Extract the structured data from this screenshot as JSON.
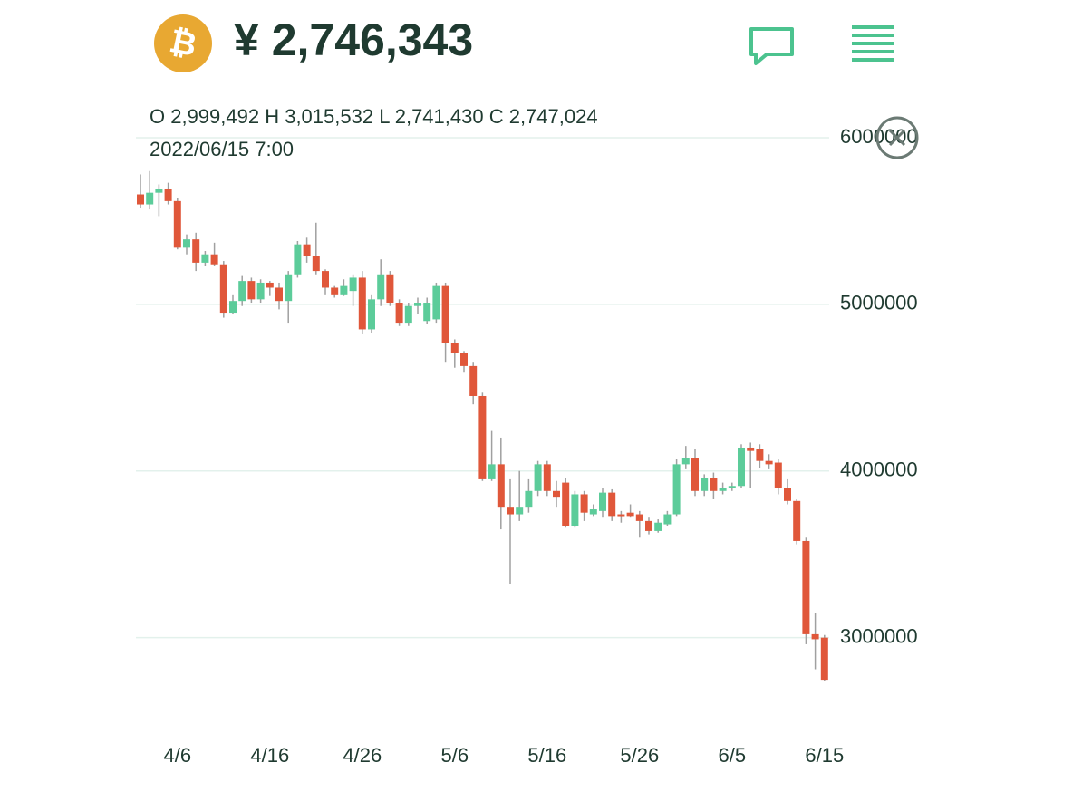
{
  "header": {
    "price": "¥ 2,746,343",
    "ohlc": "O 2,999,492  H 3,015,532  L 2,741,430  C 2,747,024",
    "datetime": "2022/06/15 7:00"
  },
  "chart_data": {
    "type": "candlestick",
    "up_color": "#5ccc9a",
    "down_color": "#e0573a",
    "wick_color": "#a0a0a0",
    "grid": true,
    "categories": [
      null,
      null,
      null,
      null,
      "4/6",
      null,
      null,
      null,
      null,
      null,
      null,
      null,
      null,
      null,
      "4/16",
      null,
      null,
      null,
      null,
      null,
      null,
      null,
      null,
      null,
      "4/26",
      null,
      null,
      null,
      null,
      null,
      null,
      null,
      null,
      null,
      "5/6",
      null,
      null,
      null,
      null,
      null,
      null,
      null,
      null,
      null,
      "5/16",
      null,
      null,
      null,
      null,
      null,
      null,
      null,
      null,
      null,
      "5/26",
      null,
      null,
      null,
      null,
      null,
      null,
      null,
      null,
      null,
      "6/5",
      null,
      null,
      null,
      null,
      null,
      null,
      null,
      null,
      null,
      "6/15"
    ],
    "open": [
      5660000,
      5600000,
      5670000,
      5690000,
      5620000,
      5340000,
      5390000,
      5250000,
      5300000,
      5240000,
      4950000,
      5020000,
      5140000,
      5030000,
      5130000,
      5100000,
      5020000,
      5180000,
      5360000,
      5290000,
      5200000,
      5100000,
      5060000,
      5080000,
      5160000,
      4850000,
      5030000,
      5180000,
      5010000,
      4890000,
      4990000,
      4900000,
      4910000,
      5110000,
      4770000,
      4710000,
      4630000,
      4450000,
      3950000,
      4040000,
      3780000,
      3740000,
      3780000,
      3880000,
      4040000,
      3880000,
      3930000,
      3670000,
      3860000,
      3740000,
      3760000,
      3870000,
      3740000,
      3750000,
      3740000,
      3700000,
      3640000,
      3680000,
      3740000,
      4040000,
      4080000,
      3880000,
      3960000,
      3880000,
      3900000,
      3910000,
      4140000,
      4130000,
      4060000,
      4050000,
      3900000,
      3820000,
      3580000,
      3020000,
      2999492
    ],
    "high": [
      5780000,
      5800000,
      5720000,
      5730000,
      5640000,
      5420000,
      5430000,
      5320000,
      5370000,
      5260000,
      5060000,
      5170000,
      5160000,
      5150000,
      5140000,
      5130000,
      5200000,
      5380000,
      5400000,
      5490000,
      5210000,
      5110000,
      5150000,
      5180000,
      5200000,
      5060000,
      5270000,
      5200000,
      5030000,
      5010000,
      5040000,
      5040000,
      5130000,
      5130000,
      4790000,
      4720000,
      4650000,
      4470000,
      4240000,
      4200000,
      3950000,
      4000000,
      3950000,
      4060000,
      4060000,
      3940000,
      3960000,
      3880000,
      3880000,
      3800000,
      3900000,
      3890000,
      3760000,
      3800000,
      3760000,
      3720000,
      3710000,
      3760000,
      4070000,
      4150000,
      4130000,
      3980000,
      3990000,
      3930000,
      3930000,
      4160000,
      4170000,
      4160000,
      4100000,
      4070000,
      3950000,
      3830000,
      3600000,
      3150000,
      3015532
    ],
    "low": [
      5580000,
      5570000,
      5530000,
      5600000,
      5330000,
      5300000,
      5200000,
      5230000,
      5230000,
      4920000,
      4940000,
      4990000,
      5010000,
      5010000,
      5050000,
      4970000,
      4890000,
      5160000,
      5250000,
      5180000,
      5060000,
      5040000,
      5050000,
      4990000,
      4820000,
      4830000,
      4990000,
      4990000,
      4870000,
      4870000,
      4940000,
      4880000,
      4890000,
      4650000,
      4620000,
      4590000,
      4400000,
      3940000,
      3940000,
      3650000,
      3320000,
      3700000,
      3750000,
      3850000,
      3850000,
      3780000,
      3660000,
      3660000,
      3700000,
      3730000,
      3720000,
      3700000,
      3690000,
      3720000,
      3600000,
      3620000,
      3630000,
      3670000,
      3730000,
      4010000,
      3850000,
      3850000,
      3830000,
      3860000,
      3880000,
      3900000,
      3900000,
      4020000,
      4010000,
      3860000,
      3800000,
      3560000,
      2960000,
      2810000,
      2741430
    ],
    "close": [
      5600000,
      5670000,
      5690000,
      5620000,
      5340000,
      5390000,
      5250000,
      5300000,
      5240000,
      4950000,
      5020000,
      5140000,
      5030000,
      5130000,
      5100000,
      5020000,
      5180000,
      5360000,
      5290000,
      5200000,
      5100000,
      5060000,
      5110000,
      5160000,
      4850000,
      5030000,
      5180000,
      5010000,
      4890000,
      4990000,
      5010000,
      5010000,
      5110000,
      4770000,
      4710000,
      4630000,
      4450000,
      3950000,
      4040000,
      3780000,
      3740000,
      3780000,
      3880000,
      4040000,
      3880000,
      3840000,
      3670000,
      3860000,
      3750000,
      3770000,
      3870000,
      3730000,
      3730000,
      3730000,
      3700000,
      3640000,
      3690000,
      3740000,
      4040000,
      4080000,
      3880000,
      3960000,
      3880000,
      3900000,
      3910000,
      4140000,
      4120000,
      4060000,
      4040000,
      3900000,
      3820000,
      3580000,
      3020000,
      2990000,
      2747024
    ],
    "ylim": [
      2530000,
      6000000
    ],
    "yticks": [
      3000000,
      4000000,
      5000000,
      6000000
    ]
  }
}
